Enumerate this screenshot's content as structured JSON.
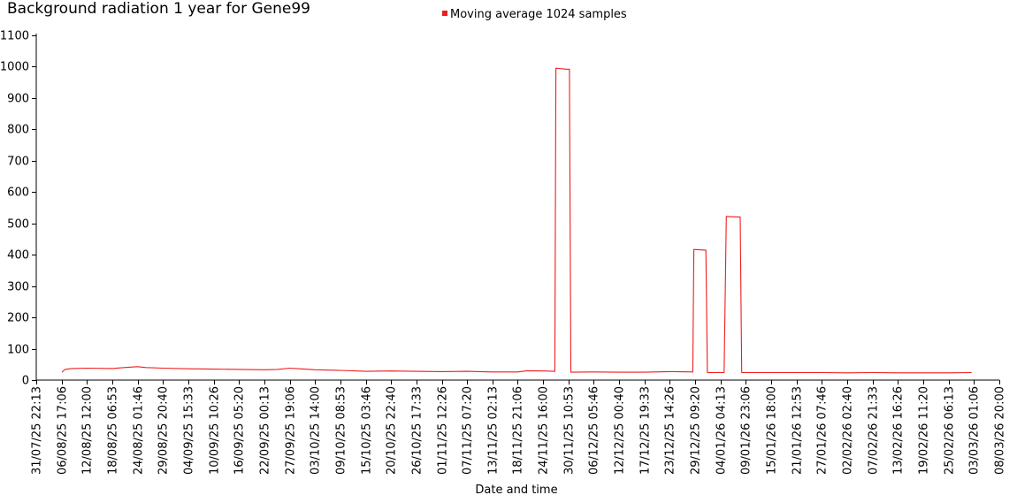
{
  "chart_data": {
    "type": "line",
    "title": "Background radiation 1 year for Gene99",
    "xlabel": "Date and time",
    "ylabel": "",
    "ylim": [
      0,
      1100
    ],
    "yticks": [
      0,
      100,
      200,
      300,
      400,
      500,
      600,
      700,
      800,
      900,
      1000,
      1100
    ],
    "grid": false,
    "legend_position": "top-center",
    "x_ticks": [
      "31/07/25 22:13",
      "06/08/25 17:06",
      "12/08/25 12:00",
      "18/08/25 06:53",
      "24/08/25 01:46",
      "29/08/25 20:40",
      "04/09/25 15:33",
      "10/09/25 10:26",
      "16/09/25 05:20",
      "22/09/25 00:13",
      "27/09/25 19:06",
      "03/10/25 14:00",
      "09/10/25 08:53",
      "15/10/25 03:46",
      "20/10/25 22:40",
      "26/10/25 17:33",
      "01/11/25 12:26",
      "07/11/25 07:20",
      "13/11/25 02:13",
      "18/11/25 21:06",
      "24/11/25 16:00",
      "30/11/25 10:53",
      "06/12/25 05:46",
      "12/12/25 00:40",
      "17/12/25 19:33",
      "23/12/25 14:26",
      "29/12/25 09:20",
      "04/01/26 04:13",
      "09/01/26 23:06",
      "15/01/26 18:00",
      "21/01/26 12:53",
      "27/01/26 07:46",
      "02/02/26 02:40",
      "07/02/26 21:33",
      "13/02/26 16:26",
      "19/02/26 11:20",
      "25/02/26 06:13",
      "03/03/26 01:06",
      "08/03/26 20:00"
    ],
    "series": [
      {
        "name": "Moving average 1024 samples",
        "color": "#ee1c1c",
        "points": [
          [
            "06/08/25 19:00",
            25
          ],
          [
            "07/08/25 12:00",
            34
          ],
          [
            "09/08/25 00:00",
            37
          ],
          [
            "12/08/25 12:00",
            38
          ],
          [
            "18/08/25 06:53",
            37
          ],
          [
            "21/08/25 00:00",
            40
          ],
          [
            "24/08/25 01:46",
            43
          ],
          [
            "26/08/25 00:00",
            40
          ],
          [
            "29/08/25 20:40",
            38
          ],
          [
            "04/09/25 15:33",
            36
          ],
          [
            "10/09/25 10:26",
            35
          ],
          [
            "16/09/25 05:20",
            34
          ],
          [
            "22/09/25 00:13",
            33
          ],
          [
            "25/09/25 00:00",
            34
          ],
          [
            "27/09/25 19:06",
            38
          ],
          [
            "30/09/25 00:00",
            36
          ],
          [
            "03/10/25 14:00",
            33
          ],
          [
            "09/10/25 08:53",
            31
          ],
          [
            "15/10/25 03:46",
            28
          ],
          [
            "20/10/25 22:40",
            29
          ],
          [
            "26/10/25 17:33",
            28
          ],
          [
            "01/11/25 12:26",
            27
          ],
          [
            "07/11/25 07:20",
            28
          ],
          [
            "13/11/25 02:13",
            26
          ],
          [
            "18/11/25 21:06",
            26
          ],
          [
            "21/11/25 00:00",
            30
          ],
          [
            "24/11/25 16:00",
            29
          ],
          [
            "27/11/25 08:00",
            28
          ],
          [
            "27/11/25 14:00",
            995
          ],
          [
            "30/11/25 00:00",
            992
          ],
          [
            "30/11/25 16:00",
            992
          ],
          [
            "01/12/25 00:00",
            25
          ],
          [
            "06/12/25 05:46",
            26
          ],
          [
            "12/12/25 00:40",
            25
          ],
          [
            "17/12/25 19:33",
            25
          ],
          [
            "23/12/25 14:26",
            27
          ],
          [
            "28/12/25 20:00",
            26
          ],
          [
            "29/12/25 02:00",
            417
          ],
          [
            "31/12/25 12:00",
            415
          ],
          [
            "31/12/25 20:00",
            415
          ],
          [
            "01/01/26 04:00",
            24
          ],
          [
            "04/01/26 04:13",
            24
          ],
          [
            "05/01/26 00:00",
            24
          ],
          [
            "05/01/26 12:00",
            522
          ],
          [
            "08/01/26 16:00",
            520
          ],
          [
            "09/01/26 00:00",
            24
          ],
          [
            "15/01/26 18:00",
            24
          ],
          [
            "21/01/26 12:53",
            24
          ],
          [
            "27/01/26 07:46",
            24
          ],
          [
            "02/02/26 02:40",
            23
          ],
          [
            "07/02/26 21:33",
            24
          ],
          [
            "13/02/26 16:26",
            23
          ],
          [
            "19/02/26 11:20",
            23
          ],
          [
            "25/02/26 06:13",
            23
          ],
          [
            "02/03/26 12:00",
            24
          ]
        ]
      }
    ]
  }
}
